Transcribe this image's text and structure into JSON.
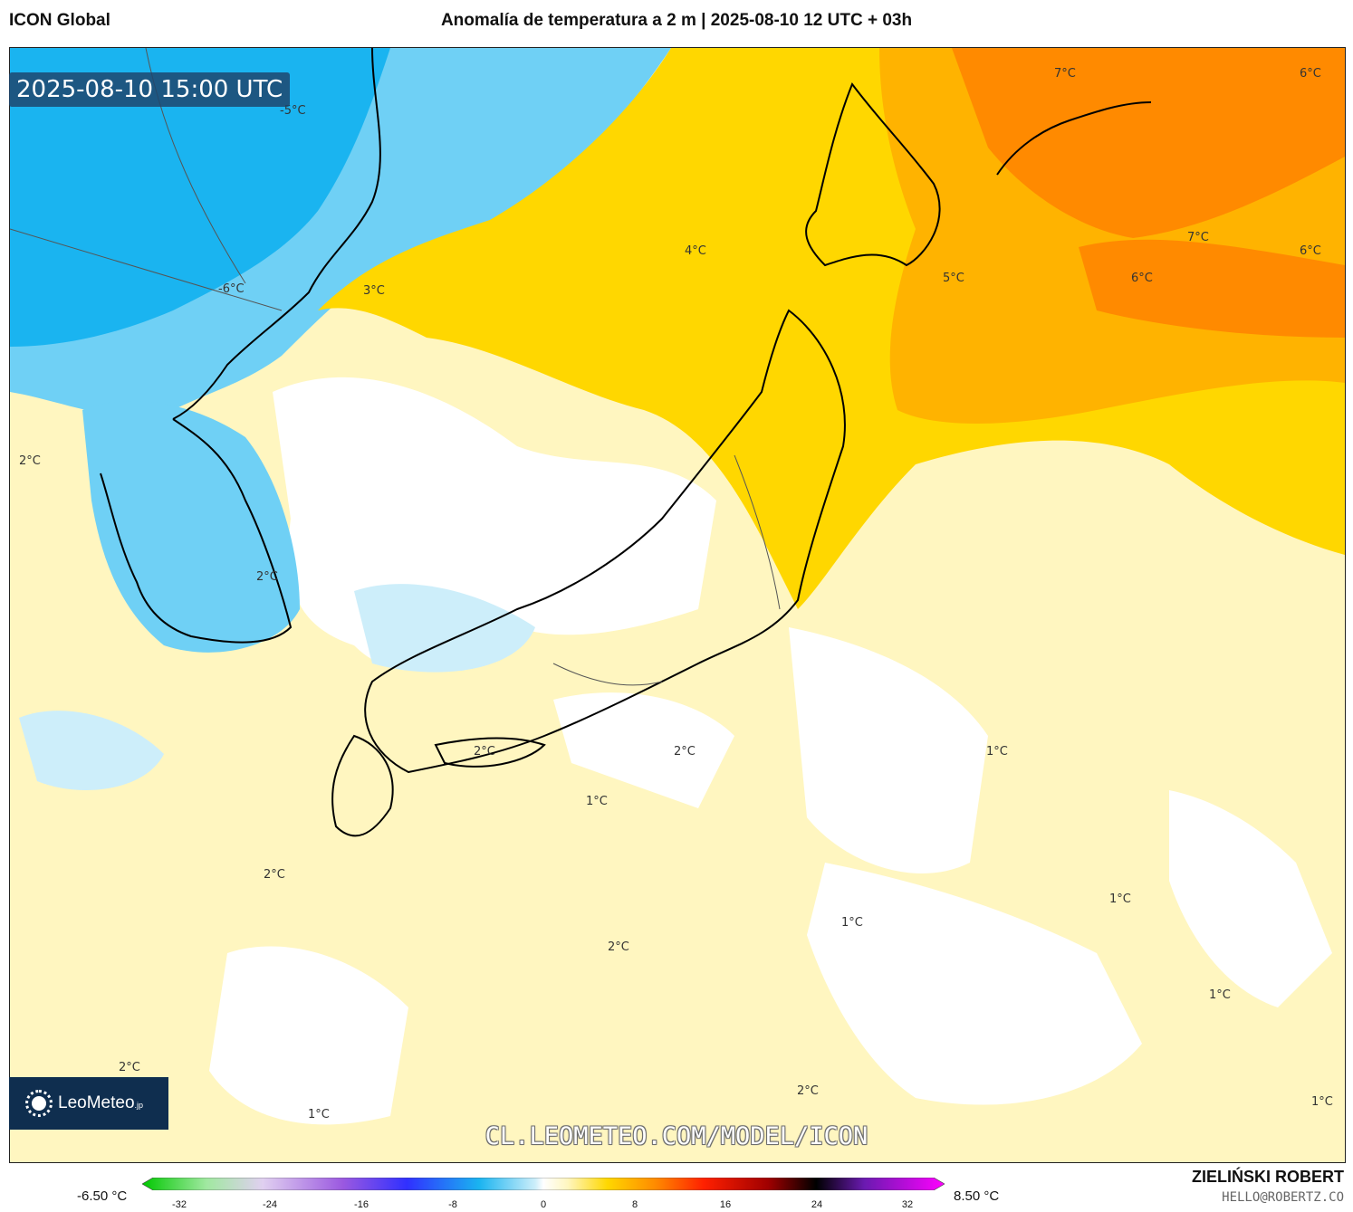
{
  "header": {
    "model": "ICON Global",
    "title": "Anomalía de temperatura a 2 m | 2025-08-10 12 UTC + 03h"
  },
  "valid_time": "2025-08-10 15:00 UTC",
  "logo": {
    "text": "LeoMeteo",
    "suffix": ".jp"
  },
  "watermark": "CL.LEOMETEO.COM/MODEL/ICON",
  "legend": {
    "min": "-6.50 °C",
    "max": "8.50 °C",
    "ticks": [
      "-32",
      "-24",
      "-16",
      "-8",
      "0",
      "8",
      "16",
      "24",
      "32"
    ]
  },
  "credits": {
    "author": "ZIELIŃSKI ROBERT",
    "email": "HELLO@ROBERTZ.CO"
  },
  "contour_labels": [
    "-5°C",
    "-6°C",
    "3°C",
    "4°C",
    "7°C",
    "6°C",
    "7°C",
    "5°C",
    "6°C",
    "6°C",
    "2°C",
    "2°C",
    "2°C",
    "2°C",
    "1°C",
    "1°C",
    "2°C",
    "1°C",
    "1°C",
    "2°C",
    "1°C",
    "1°C",
    "2°C",
    "2°C",
    "1°C",
    "1°C"
  ],
  "colors": {
    "cold_deep": "#1ab4f0",
    "cold": "#6fd0f5",
    "cold_light": "#cdeefa",
    "neutral": "#ffffff",
    "warm_light": "#fff6c0",
    "warm": "#ffd700",
    "warmer": "#ffb300",
    "hot": "#ff8a00"
  }
}
